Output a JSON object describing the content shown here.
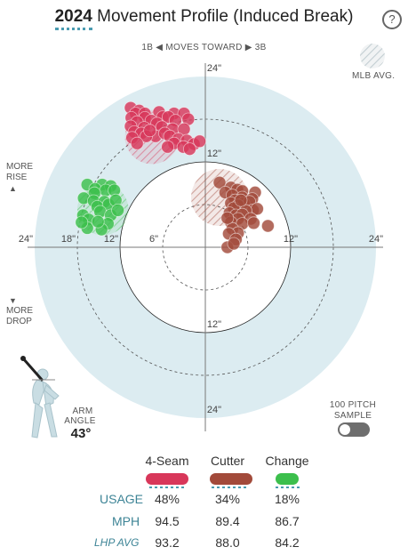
{
  "header": {
    "year": "2024",
    "title": "Movement Profile (Induced Break)",
    "help_label": "?"
  },
  "direction": {
    "left": "1B",
    "middle": "MOVES TOWARD",
    "right": "3B"
  },
  "legend_mlb": "MLB AVG.",
  "side_labels": {
    "more_rise_1": "MORE",
    "more_rise_2": "RISE",
    "more_drop_1": "MORE",
    "more_drop_2": "DROP"
  },
  "arm": {
    "label_1": "ARM",
    "label_2": "ANGLE",
    "value": "43°"
  },
  "sample_toggle": {
    "label_1": "100 PITCH",
    "label_2": "SAMPLE",
    "on": false
  },
  "colors": {
    "four_seam": "#d8375a",
    "cutter": "#a24a3a",
    "change": "#3cbf4c",
    "background_circle": "#dcecf1",
    "accent": "#4a9bb0"
  },
  "chart_data": {
    "type": "scatter",
    "x_axis_ticks": [
      "24\"",
      "18\"",
      "12\"",
      "6\"",
      "12\"",
      "24\""
    ],
    "y_axis_ticks": [
      "24\"",
      "12\"",
      "12\"",
      "24\""
    ],
    "rings_inches": [
      6,
      12,
      18,
      24
    ],
    "xlim": [
      -24,
      24
    ],
    "ylim": [
      -24,
      24
    ],
    "series": [
      {
        "name": "4-Seam",
        "color": "#d8375a",
        "mlb_avg": {
          "x": -7.5,
          "y": 15.5,
          "r": 3.8
        },
        "points": [
          [
            -10.5,
            19.6
          ],
          [
            -9.3,
            19.2
          ],
          [
            -9.8,
            18.8
          ],
          [
            -8.5,
            18.8
          ],
          [
            -6.5,
            19.0
          ],
          [
            -4.4,
            18.8
          ],
          [
            -3.0,
            18.8
          ],
          [
            -6.0,
            18.3
          ],
          [
            -10.4,
            18.2
          ],
          [
            -8.5,
            18.2
          ],
          [
            -7.6,
            17.8
          ],
          [
            -5.2,
            18.3
          ],
          [
            -4.2,
            17.8
          ],
          [
            -2.4,
            18.0
          ],
          [
            -9.6,
            17.6
          ],
          [
            -6.8,
            17.4
          ],
          [
            -10.5,
            17.0
          ],
          [
            -8.6,
            16.8
          ],
          [
            -6.1,
            16.9
          ],
          [
            -4.6,
            16.6
          ],
          [
            -3.0,
            16.6
          ],
          [
            -10.0,
            16.2
          ],
          [
            -9.0,
            16.0
          ],
          [
            -7.0,
            15.6
          ],
          [
            -5.7,
            16.0
          ],
          [
            -5.0,
            15.6
          ],
          [
            -3.8,
            15.2
          ],
          [
            -2.6,
            15.0
          ],
          [
            -8.3,
            15.6
          ],
          [
            -10.3,
            15.4
          ],
          [
            -4.4,
            14.6
          ],
          [
            -3.1,
            14.1
          ],
          [
            -1.6,
            14.5
          ],
          [
            -2.2,
            13.8
          ],
          [
            -5.3,
            14.1
          ],
          [
            -0.8,
            14.9
          ],
          [
            -9.6,
            14.6
          ],
          [
            -7.8,
            16.4
          ]
        ]
      },
      {
        "name": "Cutter",
        "color": "#a24a3a",
        "mlb_avg": {
          "x": 2.0,
          "y": 7.0,
          "r": 4.0
        },
        "points": [
          [
            2.0,
            9.1
          ],
          [
            3.6,
            8.4
          ],
          [
            4.5,
            8.1
          ],
          [
            5.2,
            7.9
          ],
          [
            7.0,
            7.7
          ],
          [
            2.8,
            7.7
          ],
          [
            3.8,
            7.3
          ],
          [
            5.2,
            7.0
          ],
          [
            4.2,
            6.6
          ],
          [
            6.6,
            6.8
          ],
          [
            3.6,
            6.2
          ],
          [
            5.4,
            6.2
          ],
          [
            6.2,
            6.4
          ],
          [
            4.6,
            5.9
          ],
          [
            6.7,
            5.2
          ],
          [
            7.3,
            5.4
          ],
          [
            4.0,
            5.5
          ],
          [
            5.7,
            5.1
          ],
          [
            3.4,
            4.8
          ],
          [
            4.3,
            4.5
          ],
          [
            5.2,
            4.6
          ],
          [
            6.4,
            4.0
          ],
          [
            4.6,
            4.0
          ],
          [
            3.6,
            3.5
          ],
          [
            5.2,
            3.3
          ],
          [
            6.8,
            3.4
          ],
          [
            8.8,
            3.0
          ],
          [
            3.8,
            2.6
          ],
          [
            4.6,
            2.0
          ],
          [
            3.3,
            1.9
          ],
          [
            4.3,
            1.1
          ],
          [
            3.1,
            0.0
          ],
          [
            4.0,
            0.5
          ],
          [
            5.0,
            6.6
          ],
          [
            3.1,
            4.1
          ]
        ]
      },
      {
        "name": "Change",
        "color": "#3cbf4c",
        "mlb_avg": {
          "x": -14.4,
          "y": 5.3,
          "r": 3.6
        },
        "points": [
          [
            -16.6,
            8.8
          ],
          [
            -14.5,
            8.8
          ],
          [
            -13.3,
            8.6
          ],
          [
            -15.5,
            8.2
          ],
          [
            -14.0,
            8.0
          ],
          [
            -12.8,
            8.0
          ],
          [
            -15.6,
            7.6
          ],
          [
            -17.1,
            6.9
          ],
          [
            -15.7,
            6.5
          ],
          [
            -14.2,
            6.4
          ],
          [
            -15.2,
            5.7
          ],
          [
            -13.6,
            6.0
          ],
          [
            -12.6,
            6.6
          ],
          [
            -14.8,
            5.0
          ],
          [
            -13.3,
            4.5
          ],
          [
            -17.2,
            4.5
          ],
          [
            -16.4,
            3.9
          ],
          [
            -13.7,
            3.3
          ],
          [
            -12.3,
            5.2
          ],
          [
            -16.6,
            2.7
          ],
          [
            -14.6,
            2.5
          ],
          [
            -17.4,
            3.5
          ],
          [
            -15.1,
            3.6
          ]
        ]
      }
    ]
  },
  "table": {
    "columns": [
      "4-Seam",
      "Cutter",
      "Change"
    ],
    "rows": [
      {
        "label": "USAGE",
        "values": [
          "48%",
          "34%",
          "18%"
        ]
      },
      {
        "label": "MPH",
        "values": [
          "94.5",
          "89.4",
          "86.7"
        ]
      },
      {
        "label": "LHP AVG",
        "values": [
          "93.2",
          "88.0",
          "84.2"
        ]
      }
    ]
  }
}
